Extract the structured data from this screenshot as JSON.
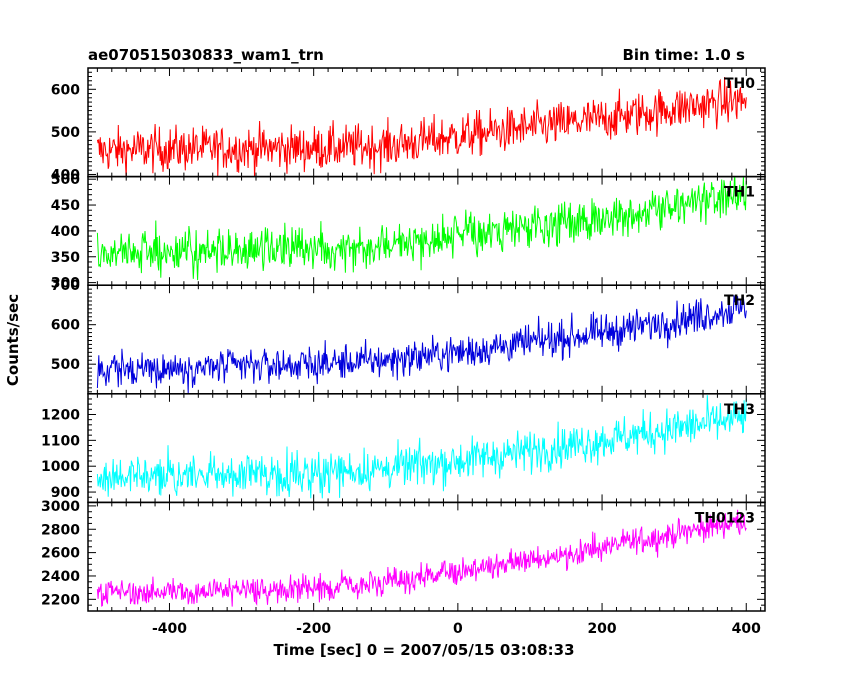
{
  "header": {
    "title": "ae070515030833_wam1_trn",
    "bin_time": "Bin time: 1.0 s"
  },
  "chart_data": [
    {
      "type": "line",
      "xlabel": "Time [sec] 0 = 2007/05/15 03:08:33",
      "ylabel": "Counts/sec",
      "xlim": [
        -513,
        426
      ],
      "xticks": [
        -400,
        -200,
        0,
        200,
        400
      ],
      "panels": [
        {
          "name": "TH0",
          "color": "#ff0000",
          "ylim": [
            395,
            650
          ],
          "yticks": [
            400,
            500,
            600
          ],
          "trend": {
            "x": [
              -500,
              -400,
              -200,
              -100,
              0,
              100,
              200,
              300,
              400
            ],
            "y": [
              455,
              460,
              462,
              467,
              490,
              510,
              530,
              555,
              575
            ]
          },
          "noise_sd": 26
        },
        {
          "name": "TH1",
          "color": "#00ff00",
          "ylim": [
            295,
            505
          ],
          "yticks": [
            300,
            350,
            400,
            450,
            500
          ],
          "trend": {
            "x": [
              -500,
              -400,
              -200,
              -100,
              0,
              100,
              200,
              300,
              400
            ],
            "y": [
              357,
              360,
              367,
              375,
              390,
              405,
              425,
              448,
              470
            ]
          },
          "noise_sd": 20
        },
        {
          "name": "TH2",
          "color": "#0000dd",
          "ylim": [
            425,
            700
          ],
          "yticks": [
            500,
            600,
            700
          ],
          "trend": {
            "x": [
              -500,
              -400,
              -200,
              -100,
              0,
              100,
              200,
              300,
              400
            ],
            "y": [
              485,
              490,
              500,
              510,
              530,
              555,
              580,
              610,
              645
            ]
          },
          "noise_sd": 22
        },
        {
          "name": "TH3",
          "color": "#00ffff",
          "ylim": [
            860,
            1280
          ],
          "yticks": [
            900,
            1000,
            1100,
            1200
          ],
          "trend": {
            "x": [
              -500,
              -400,
              -200,
              -100,
              0,
              100,
              200,
              300,
              400
            ],
            "y": [
              955,
              960,
              975,
              990,
              1020,
              1060,
              1100,
              1145,
              1190
            ]
          },
          "noise_sd": 40
        },
        {
          "name": "TH0123",
          "color": "#ff00ff",
          "ylim": [
            2100,
            3030
          ],
          "yticks": [
            2200,
            2400,
            2600,
            2800,
            3000
          ],
          "trend": {
            "x": [
              -500,
              -400,
              -200,
              -100,
              0,
              100,
              200,
              300,
              400
            ],
            "y": [
              2250,
              2265,
              2300,
              2330,
              2440,
              2530,
              2640,
              2760,
              2880
            ]
          },
          "noise_sd": 55
        }
      ]
    }
  ]
}
